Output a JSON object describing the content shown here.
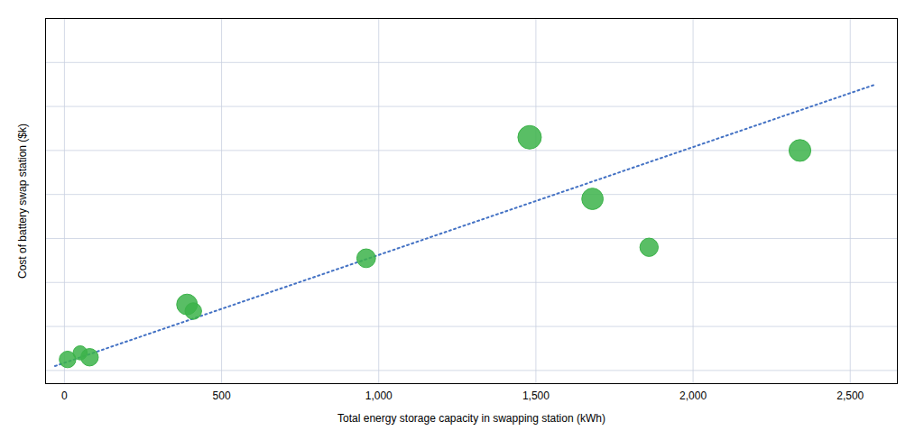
{
  "chart_data": {
    "type": "scatter",
    "xlabel": "Total energy storage capacity in swapping station (kWh)",
    "ylabel": "Cost of battery swap station ($k)",
    "xlim": [
      -60,
      2650
    ],
    "ylim": [
      -30,
      800
    ],
    "xticks": [
      0,
      500,
      {
        "value": 1000,
        "label": "1,000"
      },
      {
        "value": 1500,
        "label": "1,500"
      },
      {
        "value": 2000,
        "label": "2,000"
      },
      {
        "value": 2500,
        "label": "2,500"
      }
    ],
    "yticks": [
      0,
      100,
      200,
      300,
      400,
      500,
      600,
      700,
      800
    ],
    "tick_labels": "x",
    "grid": true,
    "series": [
      {
        "type": "scatter",
        "color": "#3cb34a",
        "marker": "circle",
        "x": [
          10,
          50,
          80,
          390,
          410,
          960,
          1480,
          1680,
          1860,
          2340
        ],
        "values": [
          25,
          40,
          30,
          150,
          135,
          255,
          530,
          390,
          280,
          500
        ],
        "sizes": [
          180,
          130,
          200,
          280,
          180,
          230,
          360,
          300,
          220,
          310
        ]
      },
      {
        "type": "line",
        "color": "#4472c4",
        "line_style": "dotted",
        "x": [
          -30,
          2580
        ],
        "values": [
          10,
          650
        ]
      }
    ]
  }
}
